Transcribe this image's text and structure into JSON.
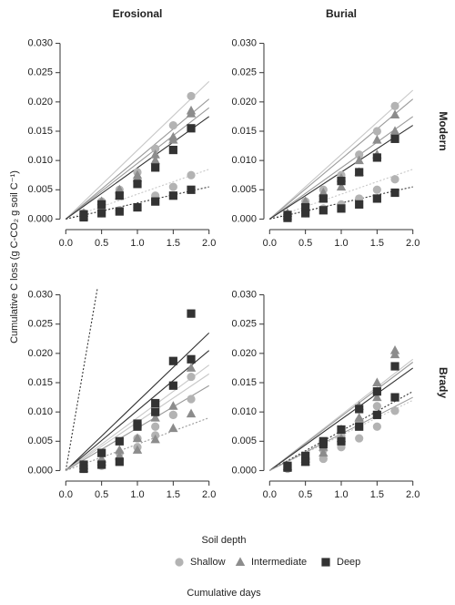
{
  "column_labels": [
    "Erosional",
    "Burial"
  ],
  "row_labels": [
    "Modern",
    "Brady"
  ],
  "y_label": "Cumulative C loss (g C-CO₂ g soil C⁻¹)",
  "x_label": "Cumulative days",
  "legend": {
    "title": "Soil depth",
    "entries": [
      {
        "name": "Shallow",
        "color": "#b3b3b3",
        "marker": "circle"
      },
      {
        "name": "Intermediate",
        "color": "#8c8c8c",
        "marker": "triangle"
      },
      {
        "name": "Deep",
        "color": "#333333",
        "marker": "square"
      }
    ]
  },
  "chart_data": [
    {
      "type": "scatter",
      "xlim": [
        -0.08,
        2.08
      ],
      "ylim": [
        -0.0018,
        0.0318
      ],
      "xticks": [
        {
          "value": 0,
          "label": "0.0"
        },
        {
          "value": 0.5,
          "label": "0.5"
        },
        {
          "value": 1,
          "label": "1.0"
        },
        {
          "value": 1.5,
          "label": "1.5"
        },
        {
          "value": 2,
          "label": "2.0"
        }
      ],
      "yticks": [
        {
          "value": 0,
          "label": "0.000"
        },
        {
          "value": 0.005,
          "label": "0.005"
        },
        {
          "value": 0.01,
          "label": "0.010"
        },
        {
          "value": 0.015,
          "label": "0.015"
        },
        {
          "value": 0.02,
          "label": "0.020"
        },
        {
          "value": 0.025,
          "label": "0.025"
        },
        {
          "value": 0.03,
          "label": "0.030"
        }
      ],
      "x": [
        0.25,
        0.5,
        0.75,
        1,
        1.25,
        1.5,
        1.75
      ],
      "series": [
        {
          "color": "#b3b3b3",
          "marker": "circle",
          "values": [
            0.001,
            0.003,
            0.005,
            0.008,
            0.012,
            0.016,
            0.021
          ]
        },
        {
          "color": "#b3b3b3",
          "marker": "circle",
          "values": [
            0.0005,
            0.001,
            0.0015,
            0.002,
            0.004,
            0.0055,
            0.0075
          ]
        },
        {
          "color": "#8c8c8c",
          "marker": "triangle",
          "values": [
            0.001,
            0.003,
            0.005,
            0.0075,
            0.011,
            0.014,
            0.0185
          ]
        },
        {
          "color": "#8c8c8c",
          "marker": "triangle",
          "values": [
            0.0005,
            0.002,
            0.004,
            0.007,
            0.01,
            0.0135,
            0.018
          ]
        },
        {
          "color": "#333333",
          "marker": "square",
          "values": [
            0.0008,
            0.0025,
            0.004,
            0.006,
            0.0088,
            0.0118,
            0.0155
          ]
        },
        {
          "color": "#333333",
          "marker": "square",
          "values": [
            0.0003,
            0.001,
            0.0013,
            0.002,
            0.003,
            0.004,
            0.005
          ]
        }
      ],
      "fits": [
        {
          "color": "#c8c8c8",
          "dash": false,
          "x": [
            0,
            2
          ],
          "y": [
            0,
            0.0235
          ]
        },
        {
          "color": "#c8c8c8",
          "dash": true,
          "x": [
            0,
            2
          ],
          "y": [
            0,
            0.0085
          ]
        },
        {
          "color": "#9a9a9a",
          "dash": false,
          "x": [
            0,
            2
          ],
          "y": [
            0,
            0.0205
          ]
        },
        {
          "color": "#9a9a9a",
          "dash": false,
          "x": [
            0,
            2
          ],
          "y": [
            0,
            0.019
          ]
        },
        {
          "color": "#333333",
          "dash": false,
          "x": [
            0,
            2
          ],
          "y": [
            0,
            0.0175
          ]
        },
        {
          "color": "#333333",
          "dash": true,
          "x": [
            0,
            2
          ],
          "y": [
            0,
            0.0055
          ]
        }
      ]
    },
    {
      "type": "scatter",
      "xlim": [
        -0.08,
        2.08
      ],
      "ylim": [
        -0.0018,
        0.0318
      ],
      "xticks": [
        {
          "value": 0,
          "label": "0.0"
        },
        {
          "value": 0.5,
          "label": "0.5"
        },
        {
          "value": 1,
          "label": "1.0"
        },
        {
          "value": 1.5,
          "label": "1.5"
        },
        {
          "value": 2,
          "label": "2.0"
        }
      ],
      "yticks": [
        {
          "value": 0,
          "label": "0.000"
        },
        {
          "value": 0.005,
          "label": "0.005"
        },
        {
          "value": 0.01,
          "label": "0.010"
        },
        {
          "value": 0.015,
          "label": "0.015"
        },
        {
          "value": 0.02,
          "label": "0.020"
        },
        {
          "value": 0.025,
          "label": "0.025"
        },
        {
          "value": 0.03,
          "label": "0.030"
        }
      ],
      "x": [
        0.25,
        0.5,
        0.75,
        1,
        1.25,
        1.5,
        1.75
      ],
      "series": [
        {
          "color": "#b3b3b3",
          "marker": "circle",
          "values": [
            0.0008,
            0.003,
            0.005,
            0.0075,
            0.011,
            0.015,
            0.0193
          ]
        },
        {
          "color": "#b3b3b3",
          "marker": "circle",
          "values": [
            0.0003,
            0.001,
            0.0018,
            0.0025,
            0.0035,
            0.005,
            0.0068
          ]
        },
        {
          "color": "#8c8c8c",
          "marker": "triangle",
          "values": [
            0.001,
            0.003,
            0.0045,
            0.007,
            0.01,
            0.0135,
            0.0178
          ]
        },
        {
          "color": "#8c8c8c",
          "marker": "triangle",
          "values": [
            0.0005,
            0.002,
            0.0035,
            0.0055,
            0.008,
            0.011,
            0.015
          ]
        },
        {
          "color": "#333333",
          "marker": "square",
          "values": [
            0.0007,
            0.002,
            0.0035,
            0.0065,
            0.008,
            0.0105,
            0.0137
          ]
        },
        {
          "color": "#333333",
          "marker": "square",
          "values": [
            0.0002,
            0.001,
            0.0015,
            0.0018,
            0.0025,
            0.0035,
            0.0045
          ]
        }
      ],
      "fits": [
        {
          "color": "#c8c8c8",
          "dash": false,
          "x": [
            0,
            2
          ],
          "y": [
            0,
            0.022
          ]
        },
        {
          "color": "#c8c8c8",
          "dash": true,
          "x": [
            0,
            2
          ],
          "y": [
            0,
            0.0085
          ]
        },
        {
          "color": "#9a9a9a",
          "dash": false,
          "x": [
            0,
            2
          ],
          "y": [
            0,
            0.0205
          ]
        },
        {
          "color": "#9a9a9a",
          "dash": false,
          "x": [
            0,
            2
          ],
          "y": [
            0,
            0.0175
          ]
        },
        {
          "color": "#333333",
          "dash": false,
          "x": [
            0,
            2
          ],
          "y": [
            0,
            0.016
          ]
        },
        {
          "color": "#333333",
          "dash": true,
          "x": [
            0,
            2
          ],
          "y": [
            0,
            0.0055
          ]
        }
      ]
    },
    {
      "type": "scatter",
      "xlim": [
        -0.08,
        2.08
      ],
      "ylim": [
        -0.0018,
        0.0318
      ],
      "xticks": [
        {
          "value": 0,
          "label": "0.0"
        },
        {
          "value": 0.5,
          "label": "0.5"
        },
        {
          "value": 1,
          "label": "1.0"
        },
        {
          "value": 1.5,
          "label": "1.5"
        },
        {
          "value": 2,
          "label": "2.0"
        }
      ],
      "yticks": [
        {
          "value": 0,
          "label": "0.000"
        },
        {
          "value": 0.005,
          "label": "0.005"
        },
        {
          "value": 0.01,
          "label": "0.010"
        },
        {
          "value": 0.015,
          "label": "0.015"
        },
        {
          "value": 0.02,
          "label": "0.020"
        },
        {
          "value": 0.025,
          "label": "0.025"
        },
        {
          "value": 0.03,
          "label": "0.030"
        }
      ],
      "x": [
        0.25,
        0.5,
        0.75,
        1,
        1.25,
        1.5,
        1.75
      ],
      "series": [
        {
          "color": "#b3b3b3",
          "marker": "circle",
          "values": [
            0.0005,
            0.0015,
            0.003,
            0.0055,
            0.0075,
            0.0095,
            0.0122
          ]
        },
        {
          "color": "#b3b3b3",
          "marker": "circle",
          "values": [
            0.0003,
            0.0008,
            0.0018,
            0.004,
            0.006,
            0.0095,
            0.016
          ]
        },
        {
          "color": "#8c8c8c",
          "marker": "triangle",
          "values": [
            0.0004,
            0.0015,
            0.0025,
            0.0035,
            0.0053,
            0.0072,
            0.0097
          ]
        },
        {
          "color": "#8c8c8c",
          "marker": "triangle",
          "values": [
            0.0008,
            0.002,
            0.0035,
            0.0055,
            0.009,
            0.011,
            0.0175
          ]
        },
        {
          "color": "#333333",
          "marker": "square",
          "values": [
            0.001,
            0.003,
            0.005,
            0.008,
            0.0115,
            0.0187,
            0.0268
          ]
        },
        {
          "color": "#333333",
          "marker": "square",
          "values": [
            0.0003,
            0.001,
            0.0015,
            0.0075,
            0.01,
            0.0145,
            0.019
          ]
        }
      ],
      "fits": [
        {
          "color": "#333333",
          "dash": true,
          "x": [
            0,
            0.44
          ],
          "y": [
            0,
            0.031
          ]
        },
        {
          "color": "#333333",
          "dash": false,
          "x": [
            0,
            2
          ],
          "y": [
            0,
            0.0235
          ]
        },
        {
          "color": "#333333",
          "dash": false,
          "x": [
            0,
            2
          ],
          "y": [
            0,
            0.0205
          ]
        },
        {
          "color": "#c8c8c8",
          "dash": false,
          "x": [
            0,
            2
          ],
          "y": [
            0,
            0.018
          ]
        },
        {
          "color": "#c8c8c8",
          "dash": false,
          "x": [
            0,
            2
          ],
          "y": [
            0,
            0.0165
          ]
        },
        {
          "color": "#9a9a9a",
          "dash": false,
          "x": [
            0,
            2
          ],
          "y": [
            0,
            0.0145
          ]
        },
        {
          "color": "#9a9a9a",
          "dash": true,
          "x": [
            0,
            2
          ],
          "y": [
            0,
            0.009
          ]
        }
      ]
    },
    {
      "type": "scatter",
      "xlim": [
        -0.08,
        2.08
      ],
      "ylim": [
        -0.0018,
        0.0318
      ],
      "xticks": [
        {
          "value": 0,
          "label": "0.0"
        },
        {
          "value": 0.5,
          "label": "0.5"
        },
        {
          "value": 1,
          "label": "1.0"
        },
        {
          "value": 1.5,
          "label": "1.5"
        },
        {
          "value": 2,
          "label": "2.0"
        }
      ],
      "yticks": [
        {
          "value": 0,
          "label": "0.000"
        },
        {
          "value": 0.005,
          "label": "0.005"
        },
        {
          "value": 0.01,
          "label": "0.010"
        },
        {
          "value": 0.015,
          "label": "0.015"
        },
        {
          "value": 0.02,
          "label": "0.020"
        },
        {
          "value": 0.025,
          "label": "0.025"
        },
        {
          "value": 0.03,
          "label": "0.030"
        }
      ],
      "x": [
        0.25,
        0.5,
        0.75,
        1,
        1.25,
        1.5,
        1.75
      ],
      "series": [
        {
          "color": "#b3b3b3",
          "marker": "circle",
          "values": [
            0.0003,
            0.0015,
            0.002,
            0.004,
            0.0055,
            0.0075,
            0.0102
          ]
        },
        {
          "color": "#b3b3b3",
          "marker": "circle",
          "values": [
            0.0005,
            0.0018,
            0.0035,
            0.006,
            0.0085,
            0.011,
            0.0125
          ]
        },
        {
          "color": "#8c8c8c",
          "marker": "triangle",
          "values": [
            0.0007,
            0.002,
            0.004,
            0.007,
            0.011,
            0.015,
            0.0205
          ]
        },
        {
          "color": "#8c8c8c",
          "marker": "triangle",
          "values": [
            0.0005,
            0.0015,
            0.003,
            0.0055,
            0.009,
            0.0125,
            0.0198
          ]
        },
        {
          "color": "#333333",
          "marker": "square",
          "values": [
            0.0008,
            0.0025,
            0.005,
            0.007,
            0.0105,
            0.0135,
            0.0178
          ]
        },
        {
          "color": "#333333",
          "marker": "square",
          "values": [
            0.0005,
            0.0015,
            0.0045,
            0.005,
            0.0075,
            0.0095,
            0.0125
          ]
        }
      ],
      "fits": [
        {
          "color": "#c8c8c8",
          "dash": false,
          "x": [
            0,
            2
          ],
          "y": [
            0,
            0.019
          ]
        },
        {
          "color": "#9a9a9a",
          "dash": false,
          "x": [
            0,
            2
          ],
          "y": [
            0,
            0.0185
          ]
        },
        {
          "color": "#333333",
          "dash": false,
          "x": [
            0,
            2
          ],
          "y": [
            0,
            0.0175
          ]
        },
        {
          "color": "#333333",
          "dash": true,
          "x": [
            0,
            2
          ],
          "y": [
            0,
            0.0135
          ]
        },
        {
          "color": "#c8c8c8",
          "dash": true,
          "x": [
            0,
            2
          ],
          "y": [
            0,
            0.012
          ]
        },
        {
          "color": "#9a9a9a",
          "dash": false,
          "x": [
            0,
            2
          ],
          "y": [
            0,
            0.0125
          ]
        }
      ]
    }
  ]
}
